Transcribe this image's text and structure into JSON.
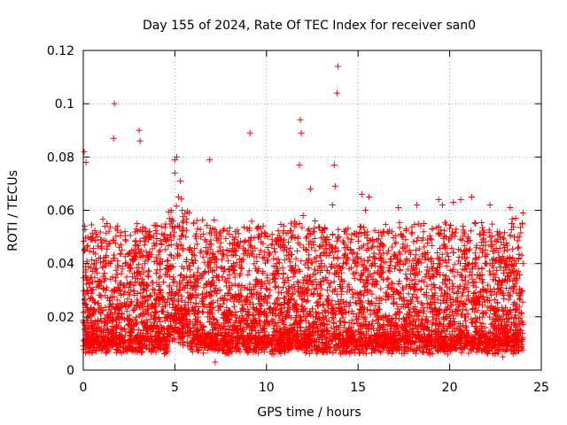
{
  "chart_data": {
    "type": "scatter",
    "title": "Day 155 of 2024, Rate Of TEC Index for receiver san0",
    "xlabel": "GPS time / hours",
    "ylabel": "ROTI / TECUs",
    "xlim": [
      0,
      25
    ],
    "ylim": [
      0,
      0.12
    ],
    "xticks": [
      0,
      5,
      10,
      15,
      20,
      25
    ],
    "xtick_labels": [
      "0",
      "5",
      "10",
      "15",
      "20",
      "25"
    ],
    "yticks": [
      0,
      0.02,
      0.04,
      0.06,
      0.08,
      0.1,
      0.12
    ],
    "ytick_labels": [
      "0",
      "0.02",
      "0.04",
      "0.06",
      "0.08",
      "0.1",
      "0.12"
    ],
    "grid": true,
    "marker": "plus",
    "series": [
      {
        "name": "ROTI",
        "color": "#ff0000",
        "x": [
          0.0,
          0.1,
          0.2,
          0.3,
          0.4,
          0.6,
          0.8,
          1.0,
          1.2,
          1.4,
          1.6,
          1.7,
          1.8,
          2.0,
          2.3,
          2.6,
          2.9,
          3.1,
          3.3,
          3.6,
          3.9,
          4.2,
          4.5,
          4.8,
          5.0,
          5.2,
          5.4,
          5.6,
          5.8,
          6.1,
          6.4,
          6.7,
          6.8,
          7.0,
          7.4,
          7.8,
          8.2,
          8.6,
          9.0,
          9.4,
          9.8,
          10.2,
          10.6,
          11.0,
          11.4,
          11.8,
          12.0,
          12.2,
          12.6,
          13.0,
          13.3,
          13.6,
          13.9,
          14.2,
          14.6,
          15.0,
          15.4,
          15.8,
          16.2,
          16.6,
          17.0,
          17.4,
          17.8,
          18.2,
          18.6,
          19.0,
          19.4,
          19.8,
          20.2,
          20.6,
          21.0,
          21.4,
          21.8,
          22.2,
          22.6,
          23.0,
          23.4,
          23.8,
          24.0,
          0.05,
          0.15,
          1.65,
          1.7,
          3.05,
          3.1,
          5.0,
          5.1,
          5.3,
          6.9,
          9.1,
          11.85,
          11.9,
          11.8,
          12.4,
          13.7,
          13.75,
          13.85,
          13.9,
          15.2,
          15.6,
          17.2,
          18.2,
          19.4,
          19.6,
          20.6,
          21.2,
          22.2,
          23.3,
          23.6,
          24.0,
          0.2,
          2.4,
          4.1,
          7.2,
          10.4,
          12.8,
          16.9,
          19.9,
          22.9,
          8.4,
          14.4,
          18.9,
          21.8,
          1.2,
          3.6,
          6.2,
          9.6,
          11.2,
          15.9,
          17.6,
          20.9,
          23.1
        ],
        "y": [
          0.018,
          0.045,
          0.03,
          0.022,
          0.05,
          0.04,
          0.025,
          0.033,
          0.028,
          0.02,
          0.035,
          0.042,
          0.03,
          0.025,
          0.04,
          0.03,
          0.047,
          0.036,
          0.03,
          0.052,
          0.03,
          0.045,
          0.038,
          0.06,
          0.074,
          0.065,
          0.06,
          0.05,
          0.045,
          0.03,
          0.05,
          0.032,
          0.02,
          0.028,
          0.035,
          0.033,
          0.04,
          0.03,
          0.045,
          0.032,
          0.042,
          0.03,
          0.038,
          0.046,
          0.05,
          0.055,
          0.058,
          0.045,
          0.052,
          0.04,
          0.05,
          0.062,
          0.05,
          0.048,
          0.045,
          0.05,
          0.06,
          0.04,
          0.045,
          0.052,
          0.038,
          0.05,
          0.045,
          0.04,
          0.055,
          0.042,
          0.04,
          0.05,
          0.063,
          0.045,
          0.05,
          0.055,
          0.045,
          0.05,
          0.052,
          0.04,
          0.055,
          0.05,
          0.04,
          0.082,
          0.078,
          0.087,
          0.1,
          0.09,
          0.086,
          0.079,
          0.08,
          0.071,
          0.079,
          0.089,
          0.094,
          0.089,
          0.077,
          0.068,
          0.077,
          0.069,
          0.104,
          0.114,
          0.066,
          0.065,
          0.061,
          0.062,
          0.064,
          0.062,
          0.064,
          0.065,
          0.062,
          0.061,
          0.057,
          0.059,
          0.01,
          0.008,
          0.009,
          0.003,
          0.006,
          0.007,
          0.008,
          0.006,
          0.005,
          0.008,
          0.009,
          0.006,
          0.007,
          0.012,
          0.011,
          0.013,
          0.01,
          0.012,
          0.011,
          0.013,
          0.012,
          0.011
        ]
      }
    ]
  }
}
